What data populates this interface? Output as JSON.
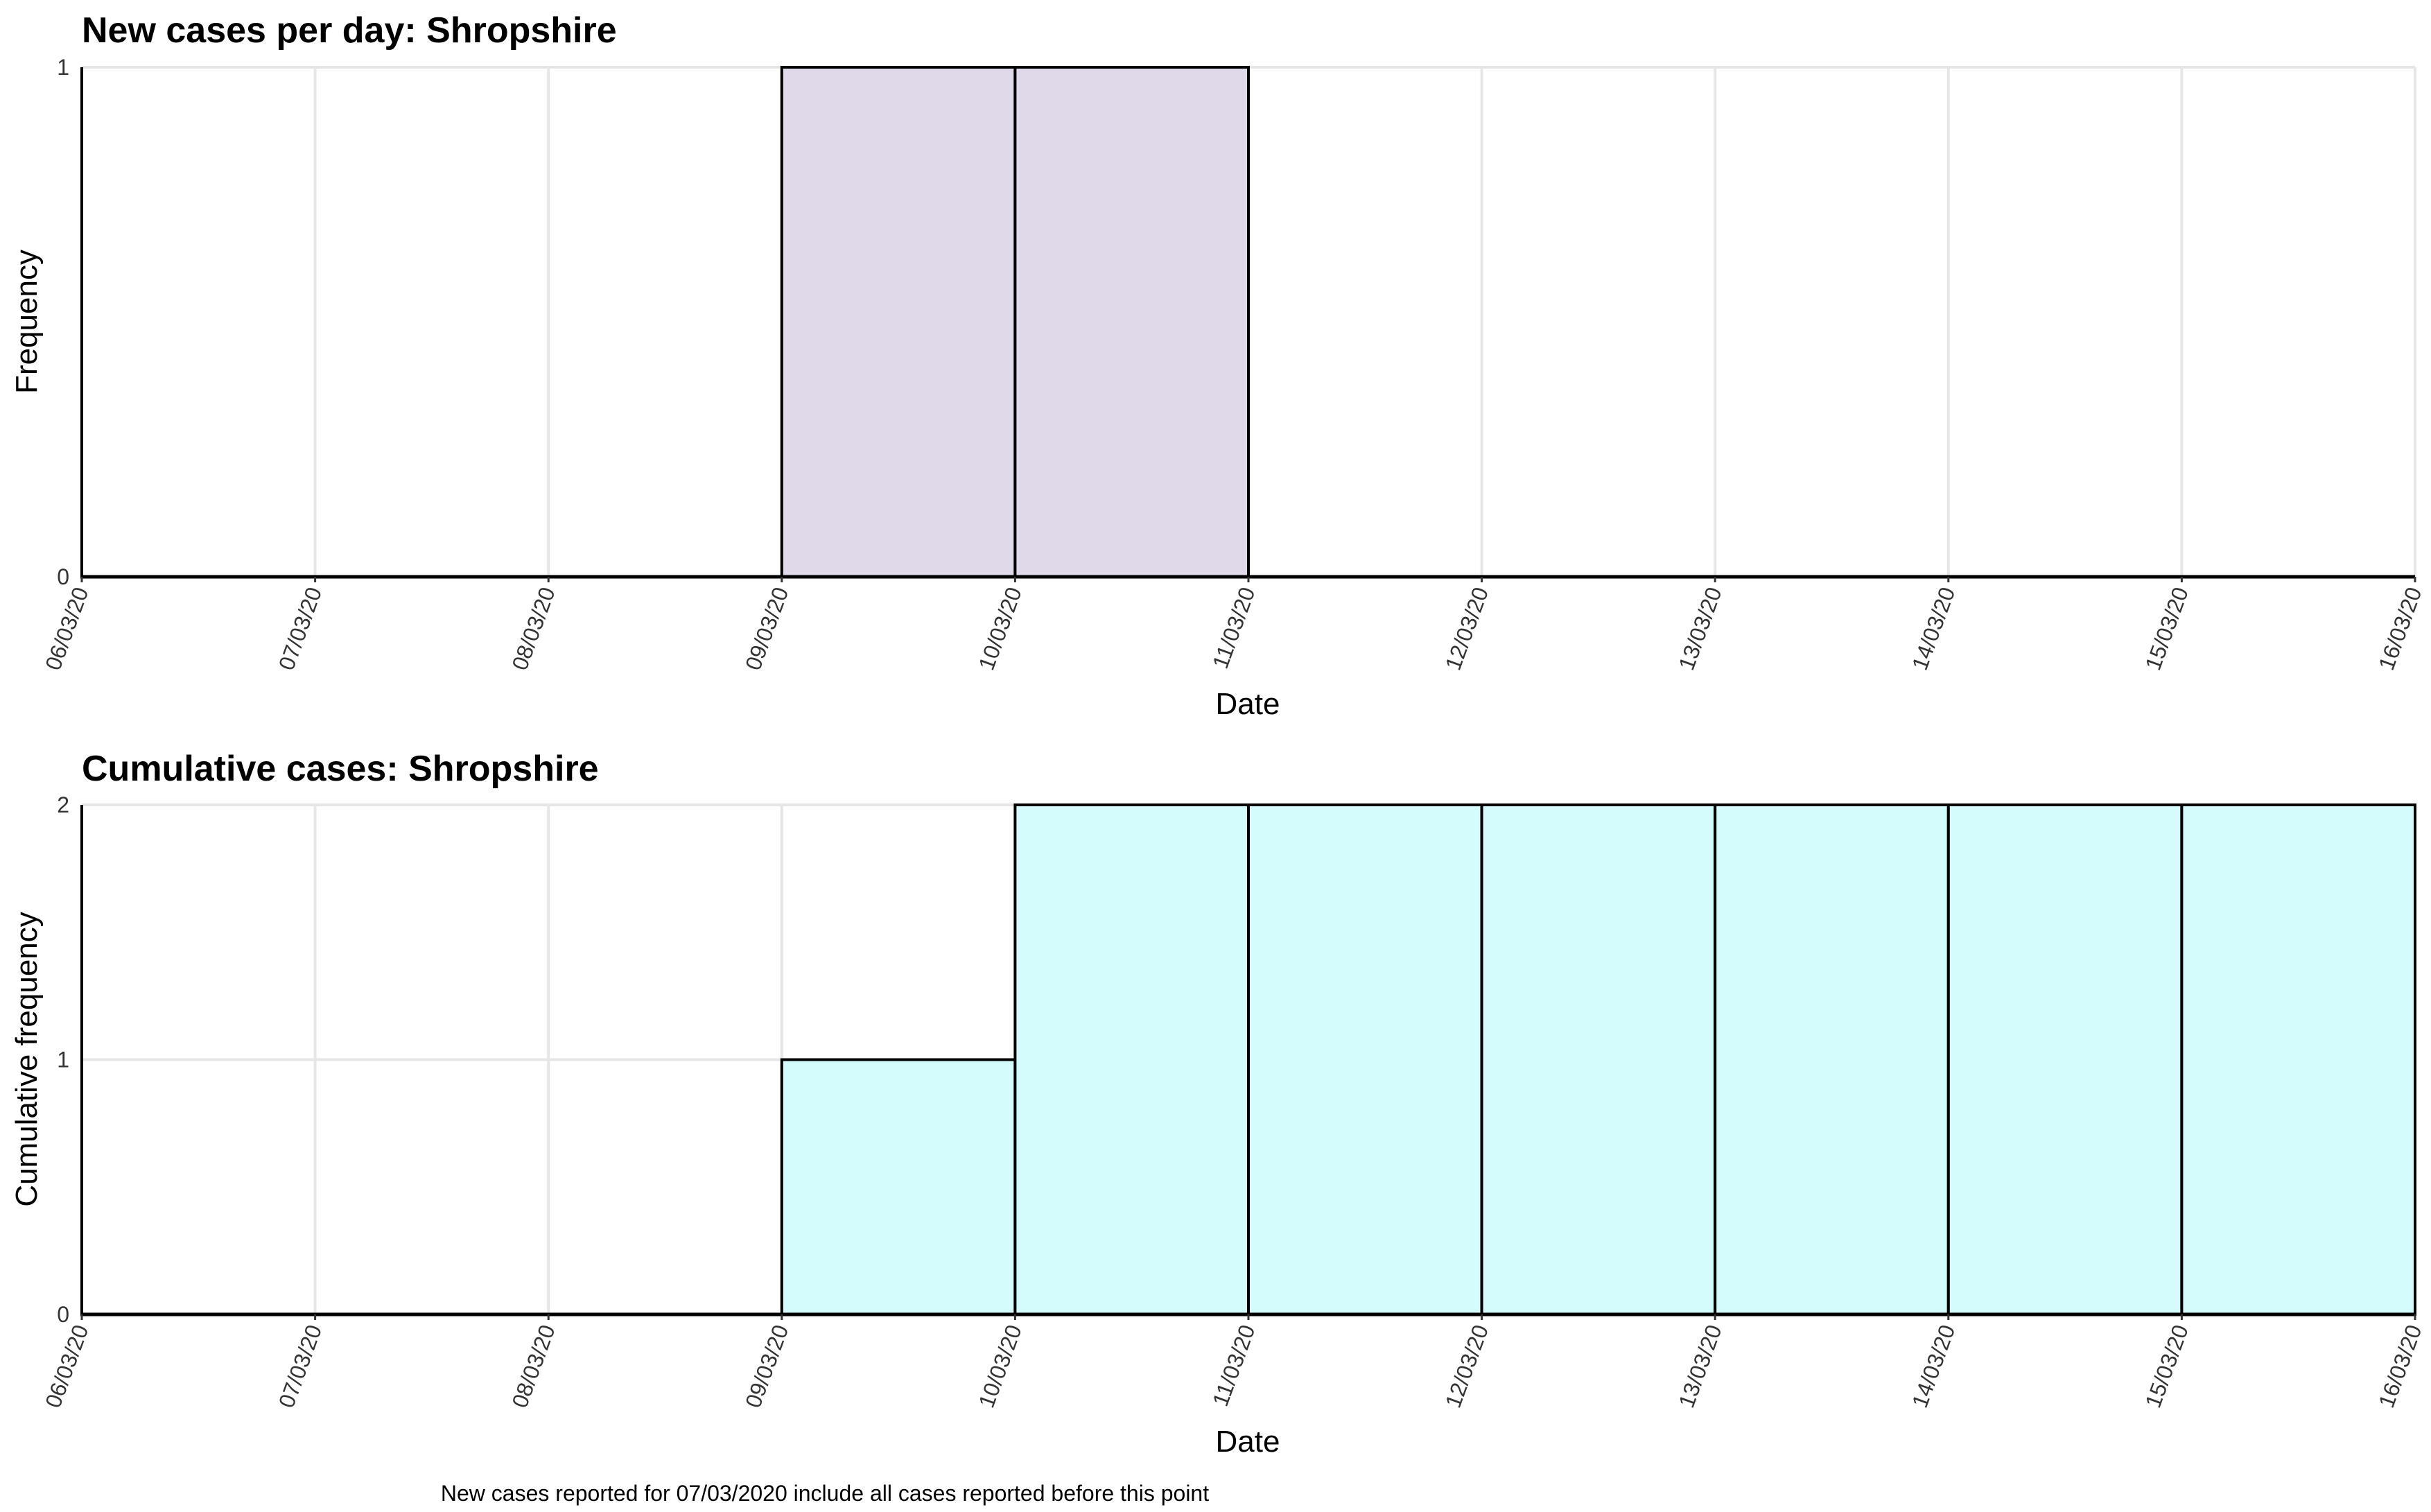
{
  "chart_data": [
    {
      "type": "bar",
      "title": "New cases per day: Shropshire",
      "xlabel": "Date",
      "ylabel": "Frequency",
      "x_ticks": [
        "06/03/20",
        "07/03/20",
        "08/03/20",
        "09/03/20",
        "10/03/20",
        "11/03/20",
        "12/03/20",
        "13/03/20",
        "14/03/20",
        "15/03/20",
        "16/03/20"
      ],
      "y_ticks": [
        0,
        1
      ],
      "ylim": [
        0,
        1
      ],
      "bars": [
        {
          "start": "06/03/20",
          "end": "07/03/20",
          "value": 0
        },
        {
          "start": "07/03/20",
          "end": "08/03/20",
          "value": 0
        },
        {
          "start": "08/03/20",
          "end": "09/03/20",
          "value": 0
        },
        {
          "start": "09/03/20",
          "end": "10/03/20",
          "value": 1
        },
        {
          "start": "10/03/20",
          "end": "11/03/20",
          "value": 1
        },
        {
          "start": "11/03/20",
          "end": "12/03/20",
          "value": 0
        },
        {
          "start": "12/03/20",
          "end": "13/03/20",
          "value": 0
        },
        {
          "start": "13/03/20",
          "end": "14/03/20",
          "value": 0
        },
        {
          "start": "14/03/20",
          "end": "15/03/20",
          "value": 0
        },
        {
          "start": "15/03/20",
          "end": "16/03/20",
          "value": 0
        }
      ],
      "bar_color": "#e0d9e9",
      "grid": true
    },
    {
      "type": "bar",
      "title": "Cumulative cases: Shropshire",
      "xlabel": "Date",
      "ylabel": "Cumulative frequency",
      "x_ticks": [
        "06/03/20",
        "07/03/20",
        "08/03/20",
        "09/03/20",
        "10/03/20",
        "11/03/20",
        "12/03/20",
        "13/03/20",
        "14/03/20",
        "15/03/20",
        "16/03/20"
      ],
      "y_ticks": [
        0,
        1,
        2
      ],
      "ylim": [
        0,
        2
      ],
      "bars": [
        {
          "start": "06/03/20",
          "end": "07/03/20",
          "value": 0
        },
        {
          "start": "07/03/20",
          "end": "08/03/20",
          "value": 0
        },
        {
          "start": "08/03/20",
          "end": "09/03/20",
          "value": 0
        },
        {
          "start": "09/03/20",
          "end": "10/03/20",
          "value": 1
        },
        {
          "start": "10/03/20",
          "end": "11/03/20",
          "value": 2
        },
        {
          "start": "11/03/20",
          "end": "12/03/20",
          "value": 2
        },
        {
          "start": "12/03/20",
          "end": "13/03/20",
          "value": 2
        },
        {
          "start": "13/03/20",
          "end": "14/03/20",
          "value": 2
        },
        {
          "start": "14/03/20",
          "end": "15/03/20",
          "value": 2
        },
        {
          "start": "15/03/20",
          "end": "16/03/20",
          "value": 2
        }
      ],
      "bar_color": "#d5fcfc",
      "grid": true
    }
  ],
  "caption": "New cases reported for 07/03/2020 include all cases reported before this point",
  "colors": {
    "grid": "#e6e6e6",
    "axis": "#000000",
    "bar_outline": "#000000",
    "tick_text": "#333333"
  }
}
